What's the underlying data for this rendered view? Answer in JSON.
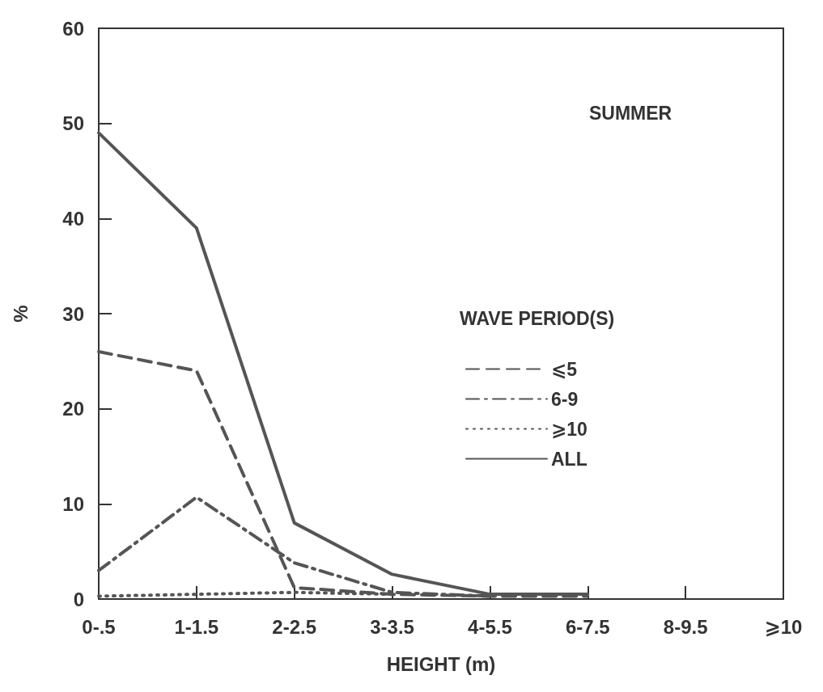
{
  "chart_data": {
    "type": "line",
    "xlabel": "HEIGHT (m)",
    "ylabel": "%",
    "legend_title": "WAVE PERIOD(S)",
    "annotations": [
      "SUMMER"
    ],
    "categories": [
      "0-.5",
      "1-1.5",
      "2-2.5",
      "3-3.5",
      "4-5.5",
      "6-7.5",
      "8-9.5",
      "⩾10"
    ],
    "series": [
      {
        "name": "⩽5",
        "color": "#555555",
        "line_style": "dashed",
        "values": [
          26,
          24,
          1.2,
          0.5,
          0.3,
          0.3,
          null,
          null
        ]
      },
      {
        "name": "6-9",
        "color": "#555555",
        "line_style": "dashdot",
        "values": [
          3,
          10.7,
          3.8,
          0.7,
          0.3,
          null,
          null,
          null
        ]
      },
      {
        "name": "⩾10",
        "color": "#555555",
        "line_style": "dotted",
        "values": [
          0.3,
          0.5,
          0.7,
          0.5,
          null,
          null,
          null,
          null
        ]
      },
      {
        "name": "ALL",
        "color": "#555555",
        "line_style": "solid",
        "values": [
          49,
          39,
          8,
          2.6,
          0.5,
          0.5,
          null,
          null
        ]
      }
    ],
    "ylim": [
      0,
      60
    ],
    "yticks": [
      0,
      10,
      20,
      30,
      40,
      50,
      60
    ],
    "grid": false,
    "legend": "right",
    "marker": "none"
  }
}
